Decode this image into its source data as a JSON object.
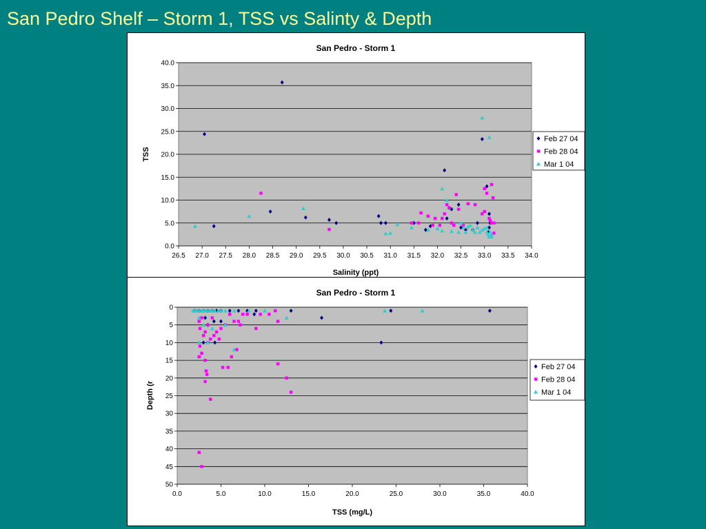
{
  "slide": {
    "title": "San Pedro Shelf – Storm 1, TSS vs Salinty & Depth"
  },
  "colors": {
    "feb27": "#000080",
    "feb28": "#ff00ff",
    "mar1": "#33cccc",
    "plot_bg": "#c0c0c0",
    "slide_bg": "#008080",
    "title": "#ffff99"
  },
  "chart_data": [
    {
      "type": "scatter",
      "title": "San Pedro - Storm 1",
      "xlabel": "Salinity (ppt)",
      "ylabel": "TSS",
      "xlim": [
        26.5,
        34.0
      ],
      "ylim": [
        0,
        40
      ],
      "x_ticks": [
        "26.5",
        "27.0",
        "27.5",
        "28.0",
        "28.5",
        "29.0",
        "29.5",
        "30.0",
        "30.5",
        "31.0",
        "31.5",
        "32.0",
        "32.5",
        "33.0",
        "33.5",
        "34.0"
      ],
      "y_ticks": [
        "0.0",
        "5.0",
        "10.0",
        "15.0",
        "20.0",
        "25.0",
        "30.0",
        "35.0",
        "40.0"
      ],
      "grid": "horizontal",
      "legend_position": "right",
      "series": [
        {
          "name": "Feb 27 04",
          "marker": "diamond",
          "color": "#000080",
          "points": [
            [
              27.05,
              24.4
            ],
            [
              27.25,
              4.3
            ],
            [
              28.45,
              7.5
            ],
            [
              28.7,
              35.7
            ],
            [
              29.2,
              6.2
            ],
            [
              29.7,
              5.7
            ],
            [
              29.85,
              5.0
            ],
            [
              30.75,
              6.5
            ],
            [
              30.8,
              5.0
            ],
            [
              30.9,
              5.0
            ],
            [
              31.5,
              5.0
            ],
            [
              31.75,
              3.5
            ],
            [
              31.85,
              4.3
            ],
            [
              32.15,
              16.5
            ],
            [
              32.2,
              6.0
            ],
            [
              32.25,
              8.3
            ],
            [
              32.3,
              8.0
            ],
            [
              32.45,
              9.0
            ],
            [
              32.5,
              4.0
            ],
            [
              32.6,
              3.5
            ],
            [
              32.75,
              3.5
            ],
            [
              32.85,
              5.0
            ],
            [
              32.95,
              23.3
            ],
            [
              33.05,
              13.0
            ],
            [
              33.1,
              7.0
            ],
            [
              33.12,
              5.0
            ],
            [
              33.1,
              4.0
            ],
            [
              33.08,
              3.0
            ]
          ]
        },
        {
          "name": "Feb 28 04",
          "marker": "square",
          "color": "#ff00ff",
          "points": [
            [
              28.25,
              11.5
            ],
            [
              29.7,
              3.6
            ],
            [
              31.45,
              5.0
            ],
            [
              31.6,
              5.0
            ],
            [
              31.65,
              7.2
            ],
            [
              31.8,
              6.5
            ],
            [
              31.9,
              4.5
            ],
            [
              31.95,
              6.0
            ],
            [
              32.05,
              4.5
            ],
            [
              32.1,
              6.0
            ],
            [
              32.15,
              7.0
            ],
            [
              32.2,
              9.0
            ],
            [
              32.25,
              8.3
            ],
            [
              32.3,
              5.0
            ],
            [
              32.35,
              4.5
            ],
            [
              32.4,
              11.2
            ],
            [
              32.45,
              8.0
            ],
            [
              32.55,
              4.5
            ],
            [
              32.65,
              9.2
            ],
            [
              32.8,
              9.0
            ],
            [
              32.95,
              7.0
            ],
            [
              33.0,
              12.5
            ],
            [
              33.0,
              7.5
            ],
            [
              33.05,
              11.5
            ],
            [
              33.1,
              6.0
            ],
            [
              33.12,
              5.5
            ],
            [
              33.15,
              13.4
            ],
            [
              33.15,
              5.0
            ],
            [
              33.18,
              10.5
            ],
            [
              33.2,
              2.8
            ],
            [
              33.2,
              5.0
            ]
          ]
        },
        {
          "name": "Mar 1 04",
          "marker": "triangle",
          "color": "#33cccc",
          "points": [
            [
              26.85,
              4.3
            ],
            [
              28.0,
              6.5
            ],
            [
              29.15,
              8.2
            ],
            [
              30.9,
              2.7
            ],
            [
              31.0,
              2.8
            ],
            [
              31.15,
              4.7
            ],
            [
              31.45,
              4.0
            ],
            [
              31.8,
              3.5
            ],
            [
              32.0,
              3.8
            ],
            [
              32.1,
              12.5
            ],
            [
              32.1,
              3.3
            ],
            [
              32.2,
              10.0
            ],
            [
              32.3,
              3.2
            ],
            [
              32.45,
              3.0
            ],
            [
              32.5,
              5.0
            ],
            [
              32.55,
              4.0
            ],
            [
              32.6,
              3.0
            ],
            [
              32.65,
              4.2
            ],
            [
              32.7,
              4.5
            ],
            [
              32.75,
              3.5
            ],
            [
              32.8,
              3.0
            ],
            [
              32.85,
              4.0
            ],
            [
              32.9,
              3.0
            ],
            [
              32.95,
              28.0
            ],
            [
              32.95,
              3.5
            ],
            [
              33.0,
              3.8
            ],
            [
              33.05,
              4.0
            ],
            [
              33.05,
              3.0
            ],
            [
              33.08,
              2.5
            ],
            [
              33.1,
              2.0
            ],
            [
              33.1,
              23.7
            ],
            [
              33.12,
              3.0
            ],
            [
              33.15,
              2.5
            ],
            [
              33.15,
              2.0
            ]
          ]
        }
      ]
    },
    {
      "type": "scatter",
      "title": "San Pedro - Storm 1",
      "xlabel": "TSS (mg/L)",
      "ylabel": "Depth (r",
      "xlim": [
        0,
        40
      ],
      "ylim": [
        0,
        50
      ],
      "y_reversed": true,
      "x_ticks": [
        "0.0",
        "5.0",
        "10.0",
        "15.0",
        "20.0",
        "25.0",
        "30.0",
        "35.0",
        "40.0"
      ],
      "y_ticks": [
        "0",
        "5",
        "10",
        "15",
        "20",
        "25",
        "30",
        "35",
        "40",
        "45",
        "50"
      ],
      "grid": "horizontal",
      "legend_position": "right",
      "series": [
        {
          "name": "Feb 27 04",
          "marker": "diamond",
          "color": "#000080",
          "points": [
            [
              2.0,
              1
            ],
            [
              2.5,
              1
            ],
            [
              3.0,
              1
            ],
            [
              3.5,
              1
            ],
            [
              4.0,
              1
            ],
            [
              4.5,
              1
            ],
            [
              5.0,
              1
            ],
            [
              6.0,
              1
            ],
            [
              7.0,
              1
            ],
            [
              8.0,
              1
            ],
            [
              9.0,
              1
            ],
            [
              13.0,
              1
            ],
            [
              16.5,
              3
            ],
            [
              24.4,
              1
            ],
            [
              35.7,
              1
            ],
            [
              23.3,
              10
            ],
            [
              3.2,
              3
            ],
            [
              3.5,
              5
            ],
            [
              4.2,
              4
            ],
            [
              5.0,
              4
            ],
            [
              8.8,
              2
            ],
            [
              3.0,
              10
            ],
            [
              4.3,
              10
            ]
          ]
        },
        {
          "name": "Feb 28 04",
          "marker": "square",
          "color": "#ff00ff",
          "points": [
            [
              2.5,
              4
            ],
            [
              2.6,
              6
            ],
            [
              2.8,
              3
            ],
            [
              3.0,
              8
            ],
            [
              3.2,
              7
            ],
            [
              3.5,
              5
            ],
            [
              3.8,
              9
            ],
            [
              4.0,
              3
            ],
            [
              4.2,
              8
            ],
            [
              4.5,
              7
            ],
            [
              4.8,
              9
            ],
            [
              5.0,
              6
            ],
            [
              5.5,
              5
            ],
            [
              6.0,
              2
            ],
            [
              6.5,
              4
            ],
            [
              7.0,
              4
            ],
            [
              7.2,
              5
            ],
            [
              7.5,
              2
            ],
            [
              8.0,
              2
            ],
            [
              9.0,
              6
            ],
            [
              9.5,
              2
            ],
            [
              10.5,
              2
            ],
            [
              11.2,
              1
            ],
            [
              11.5,
              4
            ],
            [
              2.6,
              11
            ],
            [
              2.5,
              14
            ],
            [
              2.8,
              13
            ],
            [
              3.2,
              15
            ],
            [
              3.5,
              10
            ],
            [
              5.2,
              17
            ],
            [
              5.8,
              17
            ],
            [
              6.2,
              14
            ],
            [
              6.8,
              12
            ],
            [
              3.3,
              18
            ],
            [
              3.4,
              19
            ],
            [
              3.2,
              21
            ],
            [
              3.8,
              26
            ],
            [
              11.5,
              16
            ],
            [
              12.5,
              20
            ],
            [
              13.0,
              24
            ],
            [
              2.5,
              41
            ],
            [
              2.8,
              45
            ]
          ]
        },
        {
          "name": "Mar 1 04",
          "marker": "triangle",
          "color": "#33cccc",
          "points": [
            [
              1.8,
              1
            ],
            [
              2.0,
              1
            ],
            [
              2.2,
              1
            ],
            [
              2.5,
              1
            ],
            [
              2.8,
              1
            ],
            [
              3.0,
              1
            ],
            [
              3.2,
              1
            ],
            [
              3.5,
              1
            ],
            [
              3.8,
              1
            ],
            [
              4.0,
              1
            ],
            [
              4.3,
              1
            ],
            [
              4.7,
              1
            ],
            [
              5.0,
              1
            ],
            [
              5.5,
              1
            ],
            [
              6.5,
              1
            ],
            [
              8.2,
              1
            ],
            [
              10.0,
              1
            ],
            [
              12.5,
              3
            ],
            [
              23.7,
              1
            ],
            [
              28.0,
              1
            ],
            [
              2.5,
              3
            ],
            [
              3.0,
              5
            ],
            [
              4.0,
              6
            ],
            [
              5.5,
              5
            ],
            [
              6.5,
              12
            ],
            [
              2.5,
              10
            ],
            [
              3.5,
              10
            ]
          ]
        }
      ]
    }
  ]
}
